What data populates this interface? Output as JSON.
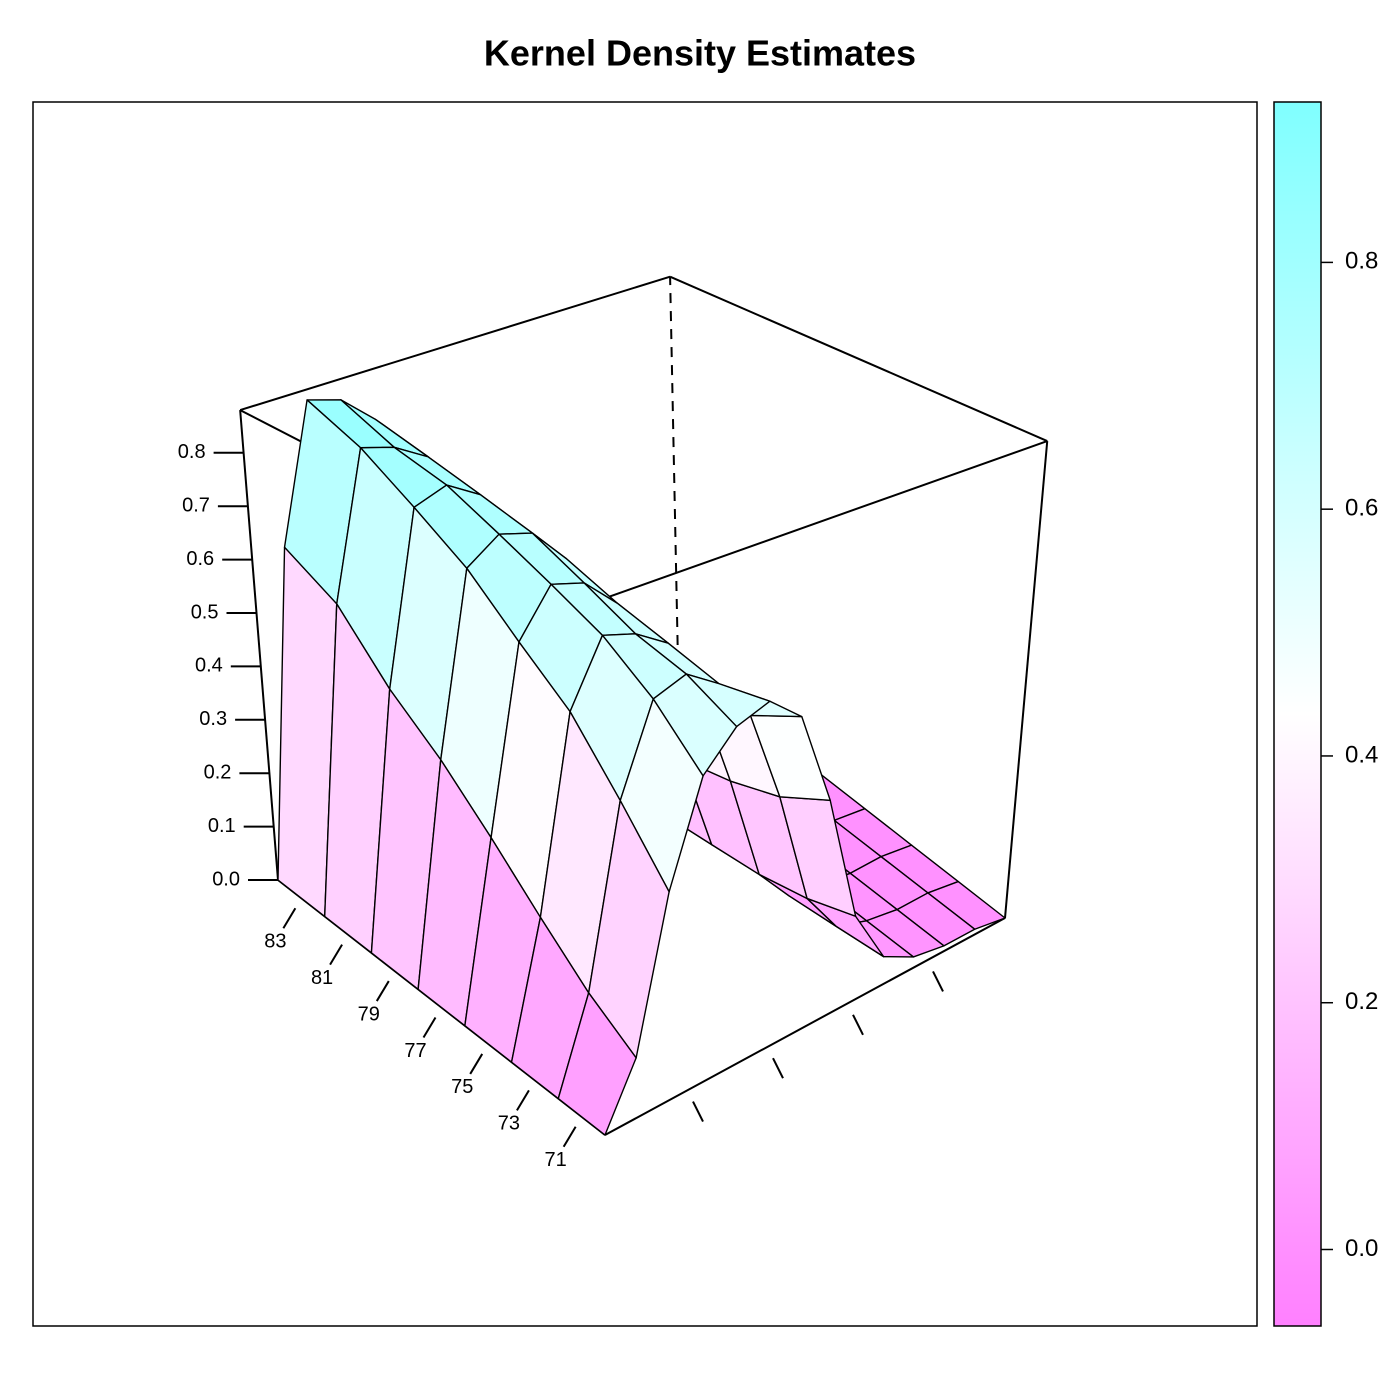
{
  "chart_data": {
    "type": "wireframe",
    "title": "Kernel Density Estimates",
    "y": [
      70,
      72,
      74,
      76,
      78,
      80,
      82,
      84
    ],
    "ylim": [
      70,
      84
    ],
    "yticks": [
      71,
      73,
      75,
      77,
      79,
      81,
      83
    ],
    "zlim": [
      0,
      0.88
    ],
    "zticks": [
      {
        "value": 0,
        "label": "0.0"
      },
      {
        "value": 0.1,
        "label": "0.1"
      },
      {
        "value": 0.2,
        "label": "0.2"
      },
      {
        "value": 0.3,
        "label": "0.3"
      },
      {
        "value": 0.4,
        "label": "0.4"
      },
      {
        "value": 0.5,
        "label": "0.5"
      },
      {
        "value": 0.6,
        "label": "0.6"
      },
      {
        "value": 0.7,
        "label": "0.7"
      },
      {
        "value": 0.8,
        "label": "0.8"
      }
    ],
    "z": [
      [
        0.0,
        0.1,
        0.35,
        0.52,
        0.58,
        0.6,
        0.55,
        0.38,
        0.15,
        0.05,
        0.02,
        0.01,
        0.01,
        0.0
      ],
      [
        0.0,
        0.15,
        0.45,
        0.6,
        0.62,
        0.58,
        0.5,
        0.33,
        0.12,
        0.04,
        0.02,
        0.01,
        0.01,
        0.0
      ],
      [
        0.0,
        0.22,
        0.55,
        0.66,
        0.64,
        0.6,
        0.48,
        0.3,
        0.1,
        0.03,
        0.02,
        0.01,
        0.01,
        0.0
      ],
      [
        0.0,
        0.3,
        0.62,
        0.7,
        0.68,
        0.62,
        0.5,
        0.28,
        0.09,
        0.03,
        0.02,
        0.01,
        0.01,
        0.0
      ],
      [
        0.0,
        0.38,
        0.7,
        0.74,
        0.72,
        0.65,
        0.52,
        0.28,
        0.08,
        0.03,
        0.02,
        0.01,
        0.0,
        0.0
      ],
      [
        0.0,
        0.45,
        0.76,
        0.78,
        0.74,
        0.66,
        0.5,
        0.26,
        0.08,
        0.03,
        0.02,
        0.01,
        0.0,
        0.0
      ],
      [
        0.0,
        0.55,
        0.82,
        0.8,
        0.76,
        0.68,
        0.52,
        0.26,
        0.07,
        0.03,
        0.02,
        0.01,
        0.0,
        0.0
      ],
      [
        0.0,
        0.6,
        0.86,
        0.84,
        0.78,
        0.7,
        0.55,
        0.27,
        0.07,
        0.03,
        0.02,
        0.01,
        0.0,
        0.0
      ]
    ],
    "colorkey": {
      "lim": [
        -0.062,
        0.93
      ],
      "ticks": [
        {
          "value": 0,
          "label": "0.0"
        },
        {
          "value": 0.2,
          "label": "0.2"
        },
        {
          "value": 0.4,
          "label": "0.4"
        },
        {
          "value": 0.6,
          "label": "0.6"
        },
        {
          "value": 0.8,
          "label": "0.8"
        }
      ],
      "colors": [
        "#ff80ff",
        "#ffffff",
        "#80ffff"
      ]
    }
  }
}
